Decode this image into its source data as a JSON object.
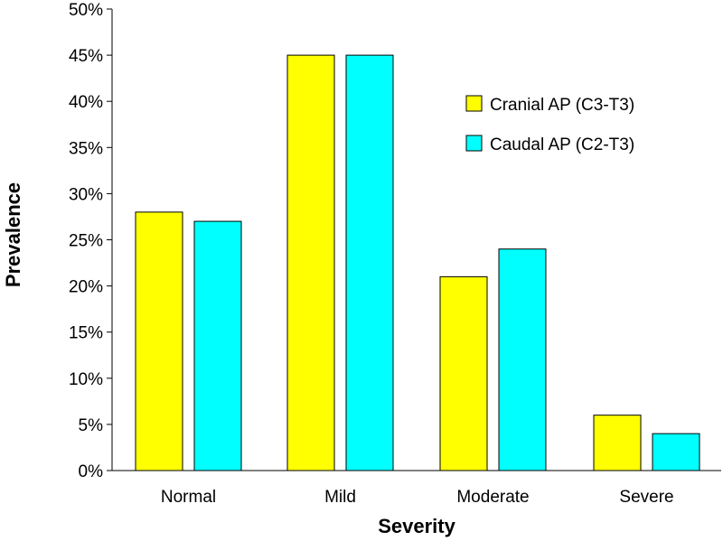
{
  "chart_data": {
    "type": "bar",
    "title": "",
    "xlabel": "Severity",
    "ylabel": "Prevalence",
    "categories": [
      "Normal",
      "Mild",
      "Moderate",
      "Severe"
    ],
    "series": [
      {
        "name": "Cranial AP (C3-T3)",
        "color": "#ffff00",
        "values": [
          28,
          45,
          21,
          6
        ]
      },
      {
        "name": "Caudal AP (C2-T3)",
        "color": "#00ffff",
        "values": [
          27,
          45,
          24,
          4
        ]
      }
    ],
    "ylim": [
      0,
      50
    ],
    "yticks": [
      0,
      5,
      10,
      15,
      20,
      25,
      30,
      35,
      40,
      45,
      50
    ],
    "ytick_labels": [
      "0%",
      "5%",
      "10%",
      "15%",
      "20%",
      "25%",
      "30%",
      "35%",
      "40%",
      "45%",
      "50%"
    ],
    "legend_position": "top-right",
    "grid": false
  }
}
